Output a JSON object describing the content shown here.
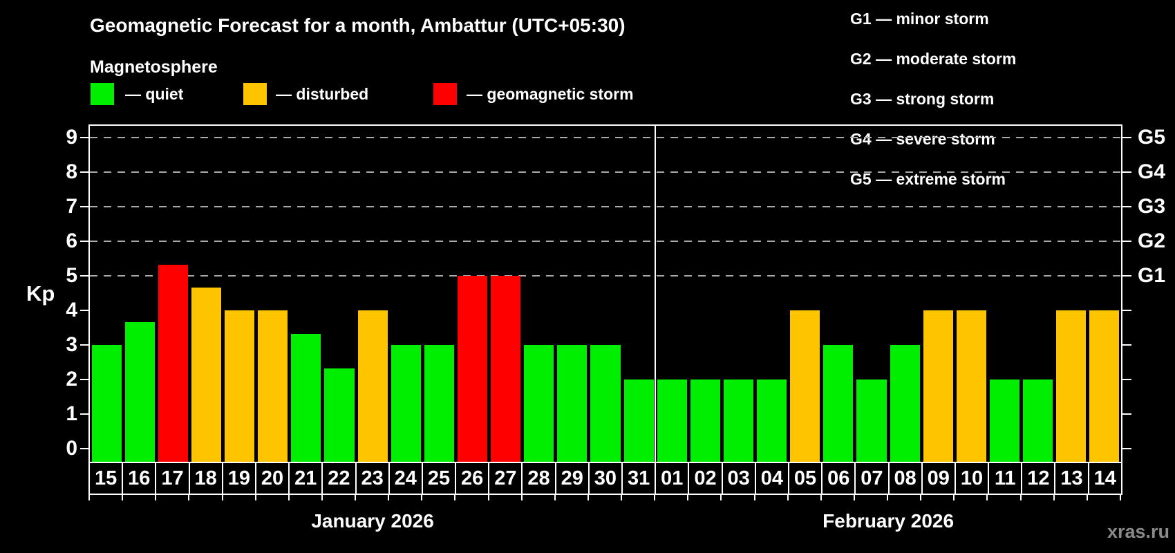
{
  "header": {
    "title": "Geomagnetic Forecast for a month, Ambattur (UTC+05:30)",
    "subtitle": "Magnetosphere",
    "legend": [
      {
        "key": "quiet",
        "label": "— quiet"
      },
      {
        "key": "disturbed",
        "label": "— disturbed"
      },
      {
        "key": "storm",
        "label": "— geomagnetic storm"
      }
    ],
    "g_legend": [
      "G1 — minor storm",
      "G2 — moderate storm",
      "G3 — strong storm",
      "G4 — severe storm",
      "G5 — extreme storm"
    ]
  },
  "colors": {
    "background": "#000000",
    "text": "#ffffff",
    "axis": "#ffffff",
    "grid": "#ababab",
    "quiet": "#00ee00",
    "disturbed": "#ffc400",
    "storm": "#ff0000",
    "watermark": "#8a8a8a"
  },
  "chart_data": {
    "type": "bar",
    "title": "Geomagnetic Forecast for a month, Ambattur (UTC+05:30)",
    "ylabel": "Kp",
    "ylim": [
      0,
      9
    ],
    "yticks": [
      0,
      1,
      2,
      3,
      4,
      5,
      6,
      7,
      8,
      9
    ],
    "gridlines_at_kp": [
      5,
      6,
      7,
      8,
      9
    ],
    "grid_style": "dashed",
    "legend_position": "top-left",
    "right_axis": [
      {
        "label": "G1",
        "kp": 5
      },
      {
        "label": "G2",
        "kp": 6
      },
      {
        "label": "G3",
        "kp": 7
      },
      {
        "label": "G4",
        "kp": 8
      },
      {
        "label": "G5",
        "kp": 9
      }
    ],
    "months": [
      {
        "label": "January 2026",
        "start_index": 0,
        "days": 17
      },
      {
        "label": "February 2026",
        "start_index": 17,
        "days": 14
      }
    ],
    "categories": [
      "15",
      "16",
      "17",
      "18",
      "19",
      "20",
      "21",
      "22",
      "23",
      "24",
      "25",
      "26",
      "27",
      "28",
      "29",
      "30",
      "31",
      "01",
      "02",
      "03",
      "04",
      "05",
      "06",
      "07",
      "08",
      "09",
      "10",
      "11",
      "12",
      "13",
      "14"
    ],
    "series": [
      {
        "name": "Kp forecast",
        "values": [
          3,
          3.67,
          5.33,
          4.67,
          4,
          4,
          3.33,
          2.33,
          4,
          3,
          3,
          5,
          5,
          3,
          3,
          3,
          2,
          2,
          2,
          2,
          2,
          4,
          3,
          2,
          3,
          4,
          4,
          2,
          2,
          4,
          4
        ],
        "statuses": [
          "quiet",
          "quiet",
          "storm",
          "disturbed",
          "disturbed",
          "disturbed",
          "quiet",
          "quiet",
          "disturbed",
          "quiet",
          "quiet",
          "storm",
          "storm",
          "quiet",
          "quiet",
          "quiet",
          "quiet",
          "quiet",
          "quiet",
          "quiet",
          "quiet",
          "disturbed",
          "quiet",
          "quiet",
          "quiet",
          "disturbed",
          "disturbed",
          "quiet",
          "quiet",
          "disturbed",
          "disturbed"
        ]
      }
    ]
  },
  "watermark": "xras.ru"
}
